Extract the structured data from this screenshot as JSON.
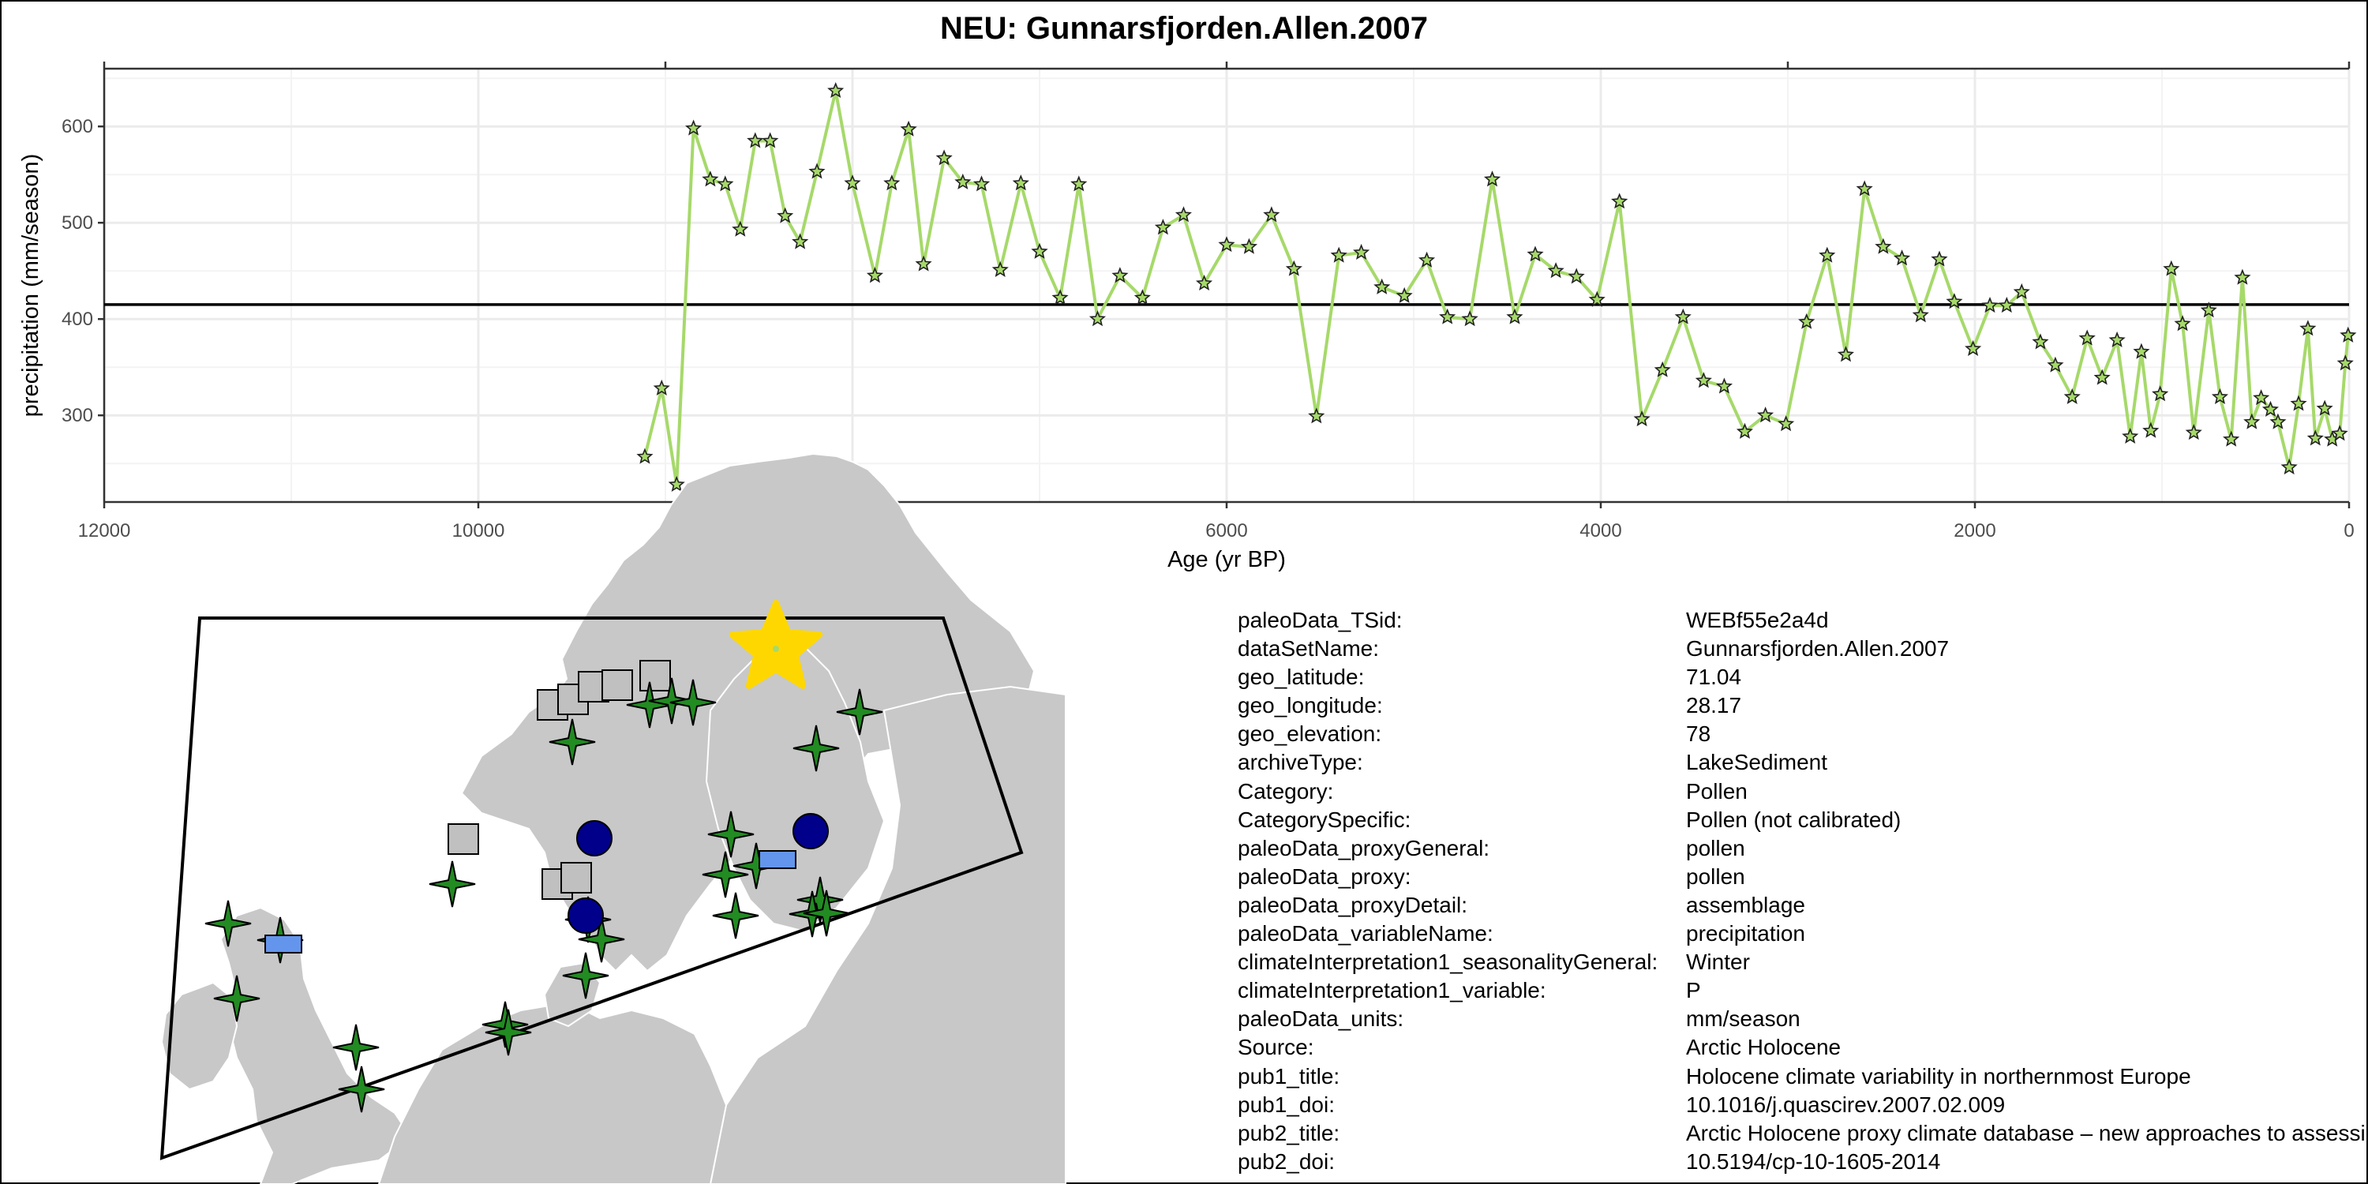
{
  "chart_data": {
    "type": "line",
    "title": "NEU: Gunnarsfjorden.Allen.2007",
    "xlabel": "Age (yr BP)",
    "ylabel": "precipitation (mm/season)",
    "xlim": [
      12000,
      0
    ],
    "ylim": [
      210,
      660
    ],
    "x_reversed": true,
    "x_ticks": [
      "12000",
      "10000",
      "8000",
      "6000",
      "4000",
      "2000",
      "0"
    ],
    "y_ticks": [
      "300",
      "400",
      "500",
      "600"
    ],
    "grid": true,
    "mean_line": 415,
    "series": [
      {
        "color": "#a6d96a",
        "marker": "star",
        "points": [
          [
            9110,
            257
          ],
          [
            9020,
            328
          ],
          [
            8940,
            228
          ],
          [
            8850,
            598
          ],
          [
            8760,
            545
          ],
          [
            8680,
            540
          ],
          [
            8600,
            493
          ],
          [
            8520,
            585
          ],
          [
            8440,
            585
          ],
          [
            8360,
            507
          ],
          [
            8280,
            480
          ],
          [
            8190,
            553
          ],
          [
            8090,
            637
          ],
          [
            8000,
            541
          ],
          [
            7880,
            445
          ],
          [
            7790,
            541
          ],
          [
            7700,
            597
          ],
          [
            7620,
            457
          ],
          [
            7510,
            567
          ],
          [
            7410,
            542
          ],
          [
            7310,
            540
          ],
          [
            7210,
            451
          ],
          [
            7100,
            541
          ],
          [
            7000,
            470
          ],
          [
            6890,
            422
          ],
          [
            6790,
            540
          ],
          [
            6690,
            400
          ],
          [
            6570,
            445
          ],
          [
            6450,
            422
          ],
          [
            6340,
            495
          ],
          [
            6230,
            508
          ],
          [
            6120,
            437
          ],
          [
            6000,
            477
          ],
          [
            5880,
            475
          ],
          [
            5760,
            508
          ],
          [
            5640,
            452
          ],
          [
            5520,
            299
          ],
          [
            5400,
            466
          ],
          [
            5280,
            469
          ],
          [
            5170,
            433
          ],
          [
            5050,
            424
          ],
          [
            4930,
            461
          ],
          [
            4820,
            402
          ],
          [
            4700,
            400
          ],
          [
            4580,
            545
          ],
          [
            4460,
            402
          ],
          [
            4350,
            467
          ],
          [
            4240,
            450
          ],
          [
            4130,
            444
          ],
          [
            4020,
            420
          ],
          [
            3900,
            522
          ],
          [
            3780,
            296
          ],
          [
            3670,
            347
          ],
          [
            3560,
            402
          ],
          [
            3450,
            336
          ],
          [
            3340,
            330
          ],
          [
            3230,
            283
          ],
          [
            3120,
            300
          ],
          [
            3010,
            291
          ],
          [
            2900,
            397
          ],
          [
            2790,
            466
          ],
          [
            2690,
            363
          ],
          [
            2590,
            535
          ],
          [
            2490,
            475
          ],
          [
            2390,
            463
          ],
          [
            2290,
            404
          ],
          [
            2190,
            462
          ],
          [
            2110,
            418
          ],
          [
            2010,
            369
          ],
          [
            1920,
            414
          ],
          [
            1830,
            414
          ],
          [
            1750,
            428
          ],
          [
            1650,
            376
          ],
          [
            1570,
            352
          ],
          [
            1480,
            319
          ],
          [
            1400,
            380
          ],
          [
            1320,
            339
          ],
          [
            1240,
            378
          ],
          [
            1170,
            278
          ],
          [
            1110,
            366
          ],
          [
            1060,
            284
          ],
          [
            1010,
            322
          ],
          [
            950,
            452
          ],
          [
            890,
            395
          ],
          [
            830,
            282
          ],
          [
            750,
            409
          ],
          [
            690,
            319
          ],
          [
            630,
            275
          ],
          [
            570,
            443
          ],
          [
            520,
            293
          ],
          [
            470,
            318
          ],
          [
            420,
            306
          ],
          [
            380,
            293
          ],
          [
            320,
            246
          ],
          [
            270,
            312
          ],
          [
            220,
            390
          ],
          [
            180,
            276
          ],
          [
            130,
            307
          ],
          [
            90,
            275
          ],
          [
            50,
            281
          ],
          [
            20,
            354
          ],
          [
            5,
            383
          ]
        ]
      }
    ]
  },
  "colors": {
    "series_line": "#a6d96a",
    "marker_fill": "#a6d96a",
    "mean_line": "#000000",
    "grid": "#ebebeb",
    "land": "#c8c8c8",
    "site_star": "#228b22",
    "site_circle": "#00008b",
    "site_square": "#c0c0c0",
    "site_rect": "#6495ed",
    "target_star": "#ffd700"
  },
  "map": {
    "target_site": {
      "icon": "star-icon",
      "color": "#ffd700"
    }
  },
  "metadata": [
    {
      "key": "paleoData_TSid:",
      "value": "WEBf55e2a4d"
    },
    {
      "key": "dataSetName:",
      "value": "Gunnarsfjorden.Allen.2007"
    },
    {
      "key": "geo_latitude:",
      "value": "71.04"
    },
    {
      "key": "geo_longitude:",
      "value": "28.17"
    },
    {
      "key": "geo_elevation:",
      "value": "78"
    },
    {
      "key": "archiveType:",
      "value": "LakeSediment"
    },
    {
      "key": "Category:",
      "value": "Pollen"
    },
    {
      "key": "CategorySpecific:",
      "value": "Pollen (not calibrated)"
    },
    {
      "key": "paleoData_proxyGeneral:",
      "value": "pollen"
    },
    {
      "key": "paleoData_proxy:",
      "value": "pollen"
    },
    {
      "key": "paleoData_proxyDetail:",
      "value": "assemblage"
    },
    {
      "key": "paleoData_variableName:",
      "value": "precipitation"
    },
    {
      "key": "climateInterpretation1_seasonalityGeneral:",
      "value": "Winter"
    },
    {
      "key": "climateInterpretation1_variable:",
      "value": "P"
    },
    {
      "key": "paleoData_units:",
      "value": "mm/season"
    },
    {
      "key": "Source:",
      "value": "Arctic Holocene"
    },
    {
      "key": "pub1_title:",
      "value": "Holocene climate variability in northernmost Europe"
    },
    {
      "key": "pub1_doi:",
      "value": "10.1016/j.quascirev.2007.02.009"
    },
    {
      "key": "pub2_title:",
      "value": "Arctic Holocene proxy climate database – new approaches to assessing geochronological accuracy and encoding climate variables"
    },
    {
      "key": "pub2_doi:",
      "value": "10.5194/cp-10-1605-2014"
    }
  ]
}
